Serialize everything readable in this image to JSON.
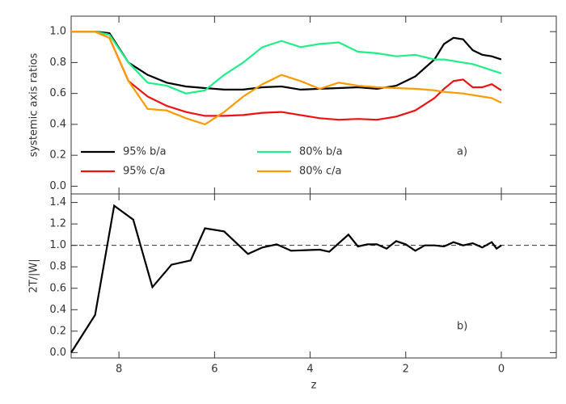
{
  "chart_data": [
    {
      "type": "line",
      "ylabel": "systemic axis ratios",
      "annotation": "a)",
      "xlim": [
        9,
        -1.15
      ],
      "ylim": [
        -0.05,
        1.1
      ],
      "yticks": [
        {
          "value": 0,
          "label": "0.0"
        },
        {
          "value": 0.2,
          "label": "0.2"
        },
        {
          "value": 0.4,
          "label": "0.4"
        },
        {
          "value": 0.6,
          "label": "0.6"
        },
        {
          "value": 0.8,
          "label": "0.8"
        },
        {
          "value": 1,
          "label": "1.0"
        }
      ],
      "x": [
        9,
        8.5,
        8.2,
        7.8,
        7.4,
        7.0,
        6.6,
        6.2,
        5.8,
        5.4,
        5.0,
        4.6,
        4.2,
        3.8,
        3.4,
        3.0,
        2.6,
        2.2,
        1.8,
        1.4,
        1.2,
        1.0,
        0.8,
        0.6,
        0.4,
        0.2,
        0
      ],
      "series": [
        {
          "name": "95% b/a",
          "color": "#000000",
          "values": [
            1.0,
            1.0,
            0.99,
            0.8,
            0.72,
            0.67,
            0.645,
            0.635,
            0.625,
            0.625,
            0.64,
            0.645,
            0.625,
            0.63,
            0.635,
            0.64,
            0.63,
            0.65,
            0.71,
            0.82,
            0.92,
            0.96,
            0.95,
            0.88,
            0.85,
            0.84,
            0.82
          ]
        },
        {
          "name": "95% c/a",
          "color": "#ee1111",
          "values": [
            1.0,
            1.0,
            0.96,
            0.68,
            0.58,
            0.52,
            0.48,
            0.455,
            0.455,
            0.46,
            0.475,
            0.48,
            0.46,
            0.44,
            0.43,
            0.435,
            0.43,
            0.45,
            0.49,
            0.57,
            0.63,
            0.68,
            0.69,
            0.64,
            0.64,
            0.66,
            0.62
          ]
        },
        {
          "name": "80% b/a",
          "color": "#22ee88",
          "values": [
            1.0,
            1.0,
            0.98,
            0.8,
            0.67,
            0.65,
            0.6,
            0.62,
            0.72,
            0.8,
            0.9,
            0.94,
            0.9,
            0.92,
            0.93,
            0.87,
            0.86,
            0.84,
            0.85,
            0.82,
            0.82,
            0.81,
            0.8,
            0.79,
            0.77,
            0.75,
            0.73
          ]
        },
        {
          "name": "80% c/a",
          "color": "#ff9900",
          "values": [
            1.0,
            1.0,
            0.96,
            0.68,
            0.5,
            0.49,
            0.44,
            0.4,
            0.48,
            0.58,
            0.66,
            0.72,
            0.68,
            0.63,
            0.67,
            0.65,
            0.64,
            0.635,
            0.63,
            0.62,
            0.61,
            0.605,
            0.6,
            0.59,
            0.58,
            0.57,
            0.54
          ]
        }
      ]
    },
    {
      "type": "line",
      "ylabel": "2T/|W|",
      "xlabel": "z",
      "annotation": "b)",
      "xlim": [
        9,
        -1.15
      ],
      "ylim": [
        -0.05,
        1.48
      ],
      "xticks": [
        8,
        6,
        4,
        2,
        0
      ],
      "yticks": [
        {
          "value": 0,
          "label": "0.0"
        },
        {
          "value": 0.2,
          "label": "0.2"
        },
        {
          "value": 0.4,
          "label": "0.4"
        },
        {
          "value": 0.6,
          "label": "0.6"
        },
        {
          "value": 0.8,
          "label": "0.8"
        },
        {
          "value": 1,
          "label": "1.0"
        },
        {
          "value": 1.2,
          "label": "1.2"
        },
        {
          "value": 1.4,
          "label": "1.4"
        }
      ],
      "reference_line": 1,
      "x": [
        9,
        8.5,
        8.1,
        7.7,
        7.3,
        6.9,
        6.5,
        6.2,
        5.8,
        5.3,
        5.0,
        4.7,
        4.4,
        3.8,
        3.6,
        3.4,
        3.2,
        3.0,
        2.8,
        2.6,
        2.4,
        2.2,
        2.0,
        1.8,
        1.6,
        1.4,
        1.2,
        1.0,
        0.8,
        0.6,
        0.4,
        0.2,
        0.1,
        0
      ],
      "series": [
        {
          "color": "#000000",
          "values": [
            0.0,
            0.35,
            1.37,
            1.24,
            0.61,
            0.82,
            0.86,
            1.16,
            1.13,
            0.92,
            0.98,
            1.01,
            0.95,
            0.96,
            0.94,
            1.02,
            1.1,
            0.99,
            1.01,
            1.01,
            0.97,
            1.04,
            1.01,
            0.95,
            1.0,
            1.0,
            0.99,
            1.03,
            1.0,
            1.02,
            0.98,
            1.03,
            0.97,
            1.0
          ]
        }
      ]
    }
  ]
}
